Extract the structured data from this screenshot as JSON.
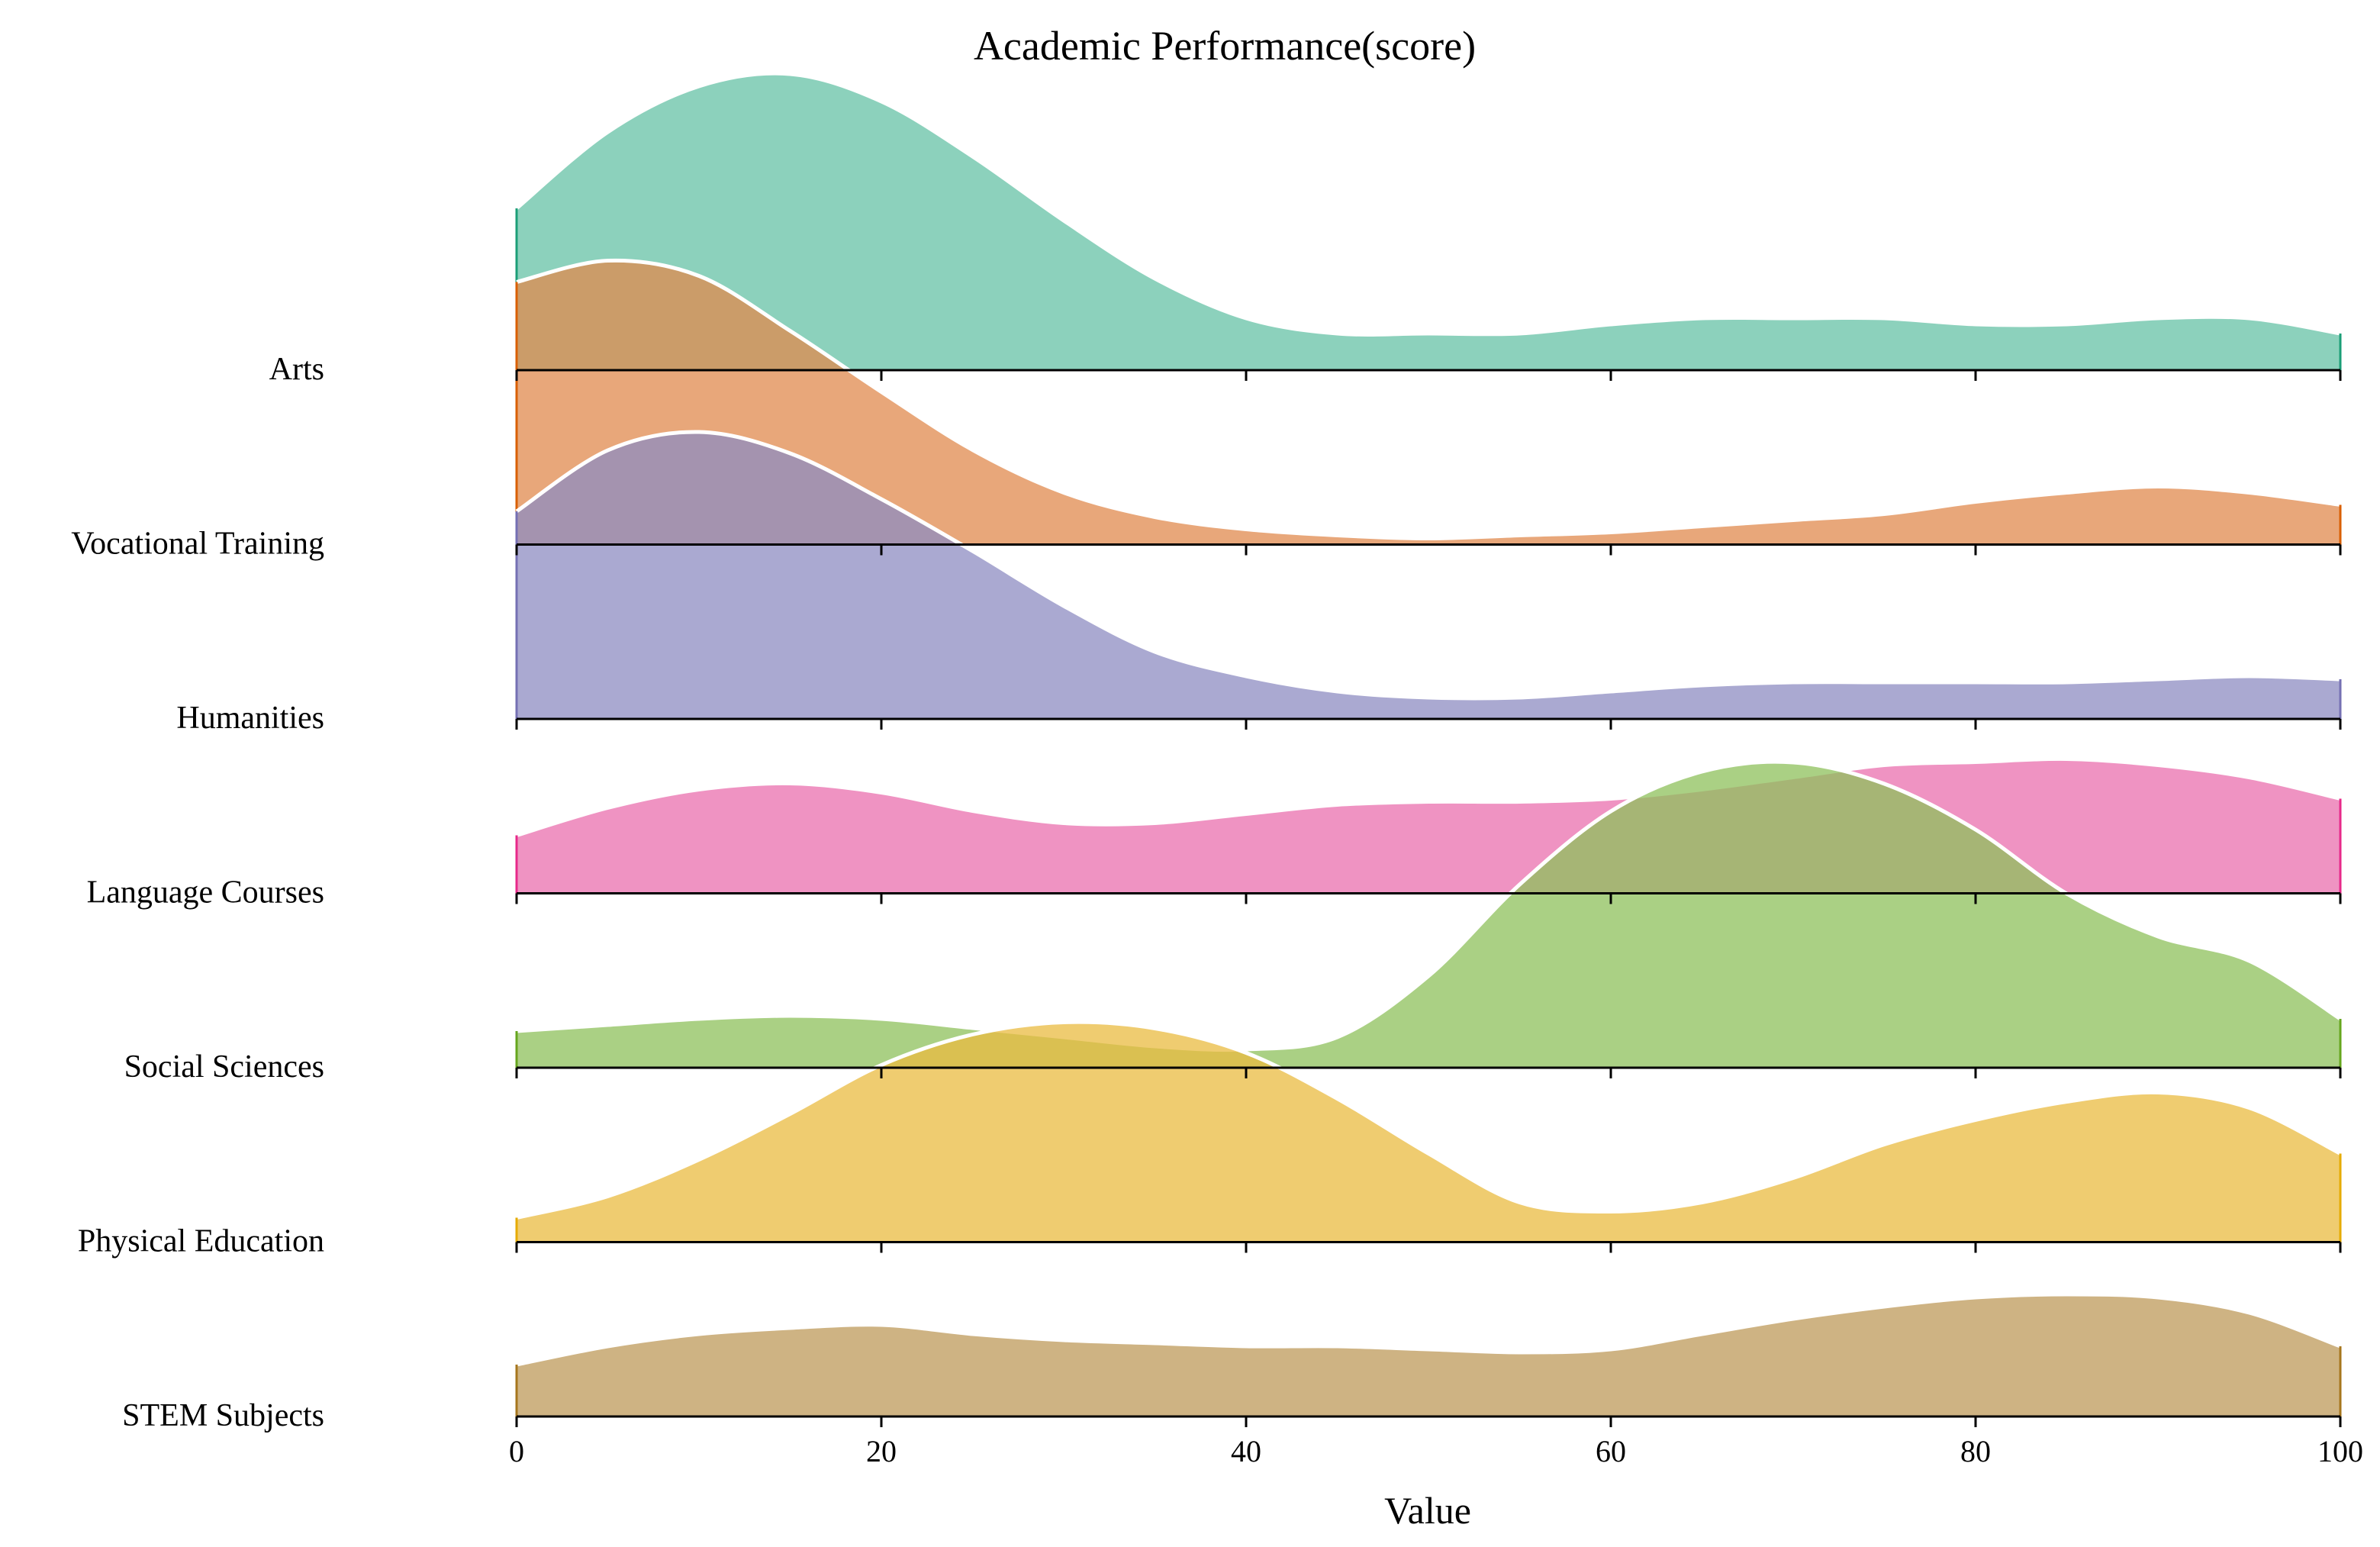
{
  "chart_data": {
    "type": "area",
    "subtype": "ridgeline",
    "title": "Academic Performance(score)",
    "xlabel": "Value",
    "ylabel": "",
    "xlim": [
      0,
      100
    ],
    "xticks": [
      0,
      20,
      40,
      60,
      80,
      100
    ],
    "grid": false,
    "legend": "none",
    "x": [
      0,
      5,
      10,
      15,
      20,
      25,
      30,
      35,
      40,
      45,
      50,
      55,
      60,
      65,
      70,
      75,
      80,
      85,
      90,
      95,
      100
    ],
    "series": [
      {
        "name": "Arts",
        "color": "#66C2A5",
        "edge": "#1B9E77",
        "values": [
          0.53,
          0.78,
          0.93,
          0.97,
          0.88,
          0.7,
          0.49,
          0.3,
          0.17,
          0.12,
          0.12,
          0.12,
          0.15,
          0.17,
          0.17,
          0.17,
          0.15,
          0.15,
          0.17,
          0.17,
          0.12
        ]
      },
      {
        "name": "Vocational Training",
        "color": "#E08A4E",
        "edge": "#D95F02",
        "values": [
          0.86,
          0.93,
          0.88,
          0.7,
          0.5,
          0.31,
          0.17,
          0.09,
          0.05,
          0.03,
          0.02,
          0.03,
          0.04,
          0.06,
          0.08,
          0.1,
          0.14,
          0.17,
          0.19,
          0.17,
          0.13
        ]
      },
      {
        "name": "Humanities",
        "color": "#8D8CC2",
        "edge": "#7570B3",
        "values": [
          0.68,
          0.88,
          0.94,
          0.87,
          0.72,
          0.55,
          0.37,
          0.22,
          0.14,
          0.09,
          0.07,
          0.07,
          0.09,
          0.11,
          0.12,
          0.12,
          0.12,
          0.12,
          0.13,
          0.14,
          0.13
        ]
      },
      {
        "name": "Language Courses",
        "color": "#E96FAD",
        "edge": "#E7298A",
        "values": [
          0.19,
          0.28,
          0.34,
          0.36,
          0.33,
          0.27,
          0.23,
          0.23,
          0.26,
          0.29,
          0.3,
          0.3,
          0.31,
          0.34,
          0.38,
          0.42,
          0.43,
          0.44,
          0.42,
          0.38,
          0.31
        ]
      },
      {
        "name": "Social Sciences",
        "color": "#8DC05B",
        "edge": "#66A61E",
        "values": [
          0.12,
          0.14,
          0.16,
          0.17,
          0.16,
          0.13,
          0.1,
          0.07,
          0.06,
          0.1,
          0.3,
          0.6,
          0.84,
          0.97,
          1.0,
          0.93,
          0.78,
          0.57,
          0.43,
          0.35,
          0.16
        ]
      },
      {
        "name": "Physical Education",
        "color": "#E9BB40",
        "edge": "#E6AB02",
        "values": [
          0.08,
          0.15,
          0.27,
          0.42,
          0.58,
          0.68,
          0.72,
          0.7,
          0.62,
          0.47,
          0.29,
          0.13,
          0.1,
          0.13,
          0.21,
          0.32,
          0.4,
          0.46,
          0.49,
          0.44,
          0.29
        ]
      },
      {
        "name": "STEM Subjects",
        "color": "#BD9A59",
        "edge": "#A6761D",
        "values": [
          0.17,
          0.23,
          0.27,
          0.29,
          0.3,
          0.27,
          0.25,
          0.24,
          0.23,
          0.23,
          0.22,
          0.21,
          0.22,
          0.27,
          0.32,
          0.36,
          0.39,
          0.4,
          0.39,
          0.34,
          0.23
        ]
      }
    ]
  }
}
